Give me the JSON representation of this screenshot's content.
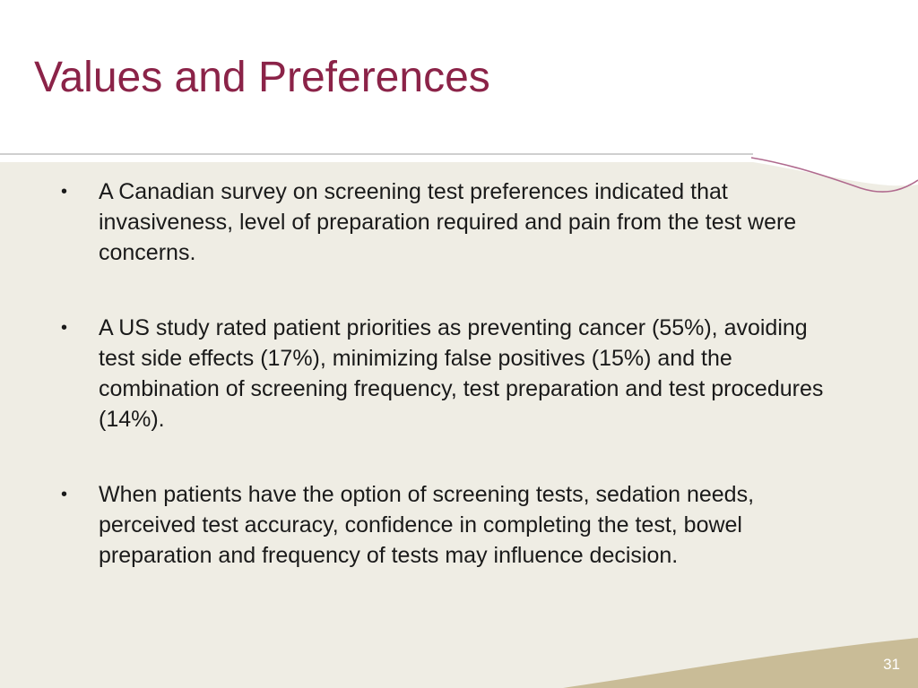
{
  "slide": {
    "title": "Values and Preferences",
    "bullets": [
      {
        "marker": "•",
        "text": "A Canadian survey on screening test preferences indicated that invasiveness, level of preparation required and pain from the test were concerns."
      },
      {
        "marker": "•",
        "text": "A US study rated patient priorities as preventing cancer (55%), avoiding test side effects (17%), minimizing false positives (15%) and the combination of screening frequency, test preparation and test procedures (14%)."
      },
      {
        "marker": "•",
        "text": "When patients have the option of screening tests, sedation needs, perceived test accuracy, confidence in completing the test, bowel preparation and frequency of tests may influence decision."
      }
    ],
    "page_number": "31"
  },
  "colors": {
    "title": "#8b2348",
    "content_background": "#efede4",
    "corner_accent": "#c9bc97",
    "curve_line": "#b06a8e"
  }
}
